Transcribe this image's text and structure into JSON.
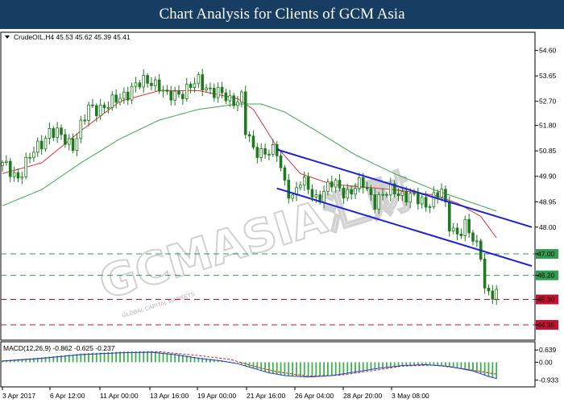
{
  "header": {
    "title": "Chart Analysis for Clients of GCM Asia"
  },
  "colors": {
    "header_bg": "#173d63",
    "candle": "#1f7a1f",
    "ma_fast": "#e0303a",
    "ma_slow": "#3aa84a",
    "channel": "#1a22dd",
    "level_green": "#2f9e52",
    "level_red": "#c8102e",
    "macd_hist": "#3bb24a",
    "macd_signal": "#d81b1b",
    "macd_line": "#1f3ddb"
  },
  "watermark": {
    "text": "GCMASIA汇财",
    "subtext": "GLOBAL CAPITAL MARKETS"
  },
  "chart_data": [
    {
      "type": "candlestick",
      "symbol_info": "CrudeOIL,H4  45.53 45.62 45.39 45.41",
      "ylim": [
        43.9,
        55.1
      ],
      "y_ticks": [
        "54.60",
        "53.65",
        "52.70",
        "51.80",
        "50.85",
        "49.90",
        "48.95",
        "48.00",
        "47.00",
        "46.20",
        "45.30",
        "44.35"
      ],
      "x_tick_labels": [
        "3 Apr 2017",
        "6 Apr 12:00",
        "11 Apr 00:00",
        "13 Apr 16:00",
        "19 Apr 00:00",
        "21 Apr 16:00",
        "26 Apr 04:00",
        "28 Apr 20:00",
        "3 May 08:00"
      ],
      "price_path": [
        [
          0,
          50.3
        ],
        [
          4,
          49.9
        ],
        [
          8,
          50.8
        ],
        [
          12,
          51.6
        ],
        [
          18,
          51.1
        ],
        [
          22,
          52.4
        ],
        [
          28,
          52.6
        ],
        [
          33,
          53.2
        ],
        [
          38,
          53.5
        ],
        [
          40,
          53.3
        ],
        [
          42,
          52.8
        ],
        [
          46,
          53.1
        ],
        [
          50,
          53.4
        ],
        [
          54,
          53.1
        ],
        [
          58,
          52.7
        ],
        [
          61,
          52.9
        ],
        [
          62,
          51.6
        ],
        [
          64,
          50.8
        ],
        [
          68,
          50.9
        ],
        [
          70,
          50.7
        ],
        [
          72,
          49.6
        ],
        [
          74,
          49.2
        ],
        [
          76,
          49.7
        ],
        [
          78,
          49.4
        ],
        [
          80,
          49.1
        ],
        [
          84,
          49.6
        ],
        [
          88,
          49.3
        ],
        [
          92,
          49.6
        ],
        [
          95,
          49.0
        ],
        [
          100,
          49.4
        ],
        [
          104,
          49.1
        ],
        [
          108,
          48.9
        ],
        [
          112,
          49.3
        ],
        [
          114,
          48.1
        ],
        [
          116,
          47.8
        ],
        [
          118,
          48.0
        ],
        [
          120,
          47.5
        ],
        [
          122,
          47.1
        ],
        [
          123,
          45.8
        ],
        [
          124,
          45.5
        ],
        [
          126,
          45.4
        ]
      ],
      "horizontal_levels": [
        {
          "value": 47.0,
          "label": "47.00",
          "color": "#2f9e52",
          "style": "dashed"
        },
        {
          "value": 46.2,
          "label": "46.20",
          "color": "#2f9e52",
          "style": "dashed"
        },
        {
          "value": 45.3,
          "label": "45.30",
          "color": "#c8102e",
          "style": "dashed"
        },
        {
          "value": 44.35,
          "label": "44.35",
          "color": "#c8102e",
          "style": "dashed"
        }
      ],
      "channel": {
        "upper": [
          [
            70,
            50.9
          ],
          [
            135,
            48.0
          ]
        ],
        "lower": [
          [
            70,
            49.45
          ],
          [
            135,
            46.55
          ]
        ]
      },
      "moving_averages": [
        {
          "color": "#e0303a",
          "points": [
            [
              0,
              50.0
            ],
            [
              10,
              50.4
            ],
            [
              20,
              51.6
            ],
            [
              30,
              52.7
            ],
            [
              40,
              53.1
            ],
            [
              50,
              53.1
            ],
            [
              60,
              52.8
            ],
            [
              64,
              52.4
            ],
            [
              70,
              51.0
            ],
            [
              76,
              50.0
            ],
            [
              84,
              49.6
            ],
            [
              92,
              49.5
            ],
            [
              100,
              49.4
            ],
            [
              110,
              49.2
            ],
            [
              116,
              48.9
            ],
            [
              122,
              48.4
            ],
            [
              126,
              47.6
            ]
          ]
        },
        {
          "color": "#3aa84a",
          "points": [
            [
              0,
              48.8
            ],
            [
              10,
              49.4
            ],
            [
              20,
              50.4
            ],
            [
              30,
              51.3
            ],
            [
              40,
              52.0
            ],
            [
              50,
              52.4
            ],
            [
              60,
              52.6
            ],
            [
              66,
              52.6
            ],
            [
              72,
              52.3
            ],
            [
              80,
              51.6
            ],
            [
              90,
              50.7
            ],
            [
              100,
              50.0
            ],
            [
              110,
              49.4
            ],
            [
              118,
              49.0
            ],
            [
              126,
              48.6
            ]
          ]
        }
      ]
    },
    {
      "type": "macd",
      "label": "MACD(12,26,9) -0.862 -0.625 -0.237",
      "ylim": [
        -1.2,
        0.9
      ],
      "y_ticks": [
        "0.639",
        "0.00",
        "-0.933"
      ],
      "histogram_path": [
        [
          0,
          0.1
        ],
        [
          10,
          0.25
        ],
        [
          20,
          0.45
        ],
        [
          30,
          0.55
        ],
        [
          38,
          0.58
        ],
        [
          44,
          0.45
        ],
        [
          50,
          0.25
        ],
        [
          56,
          0.1
        ],
        [
          60,
          -0.05
        ],
        [
          64,
          -0.3
        ],
        [
          68,
          -0.55
        ],
        [
          72,
          -0.7
        ],
        [
          78,
          -0.78
        ],
        [
          84,
          -0.7
        ],
        [
          90,
          -0.5
        ],
        [
          96,
          -0.3
        ],
        [
          102,
          -0.15
        ],
        [
          108,
          -0.1
        ],
        [
          114,
          -0.2
        ],
        [
          120,
          -0.45
        ],
        [
          124,
          -0.75
        ],
        [
          126,
          -0.86
        ]
      ],
      "signal_path": [
        [
          0,
          0.05
        ],
        [
          10,
          0.2
        ],
        [
          20,
          0.4
        ],
        [
          30,
          0.5
        ],
        [
          40,
          0.55
        ],
        [
          50,
          0.35
        ],
        [
          58,
          0.15
        ],
        [
          64,
          -0.2
        ],
        [
          70,
          -0.5
        ],
        [
          78,
          -0.72
        ],
        [
          86,
          -0.68
        ],
        [
          94,
          -0.45
        ],
        [
          102,
          -0.2
        ],
        [
          110,
          -0.15
        ],
        [
          118,
          -0.35
        ],
        [
          126,
          -0.62
        ]
      ]
    }
  ]
}
